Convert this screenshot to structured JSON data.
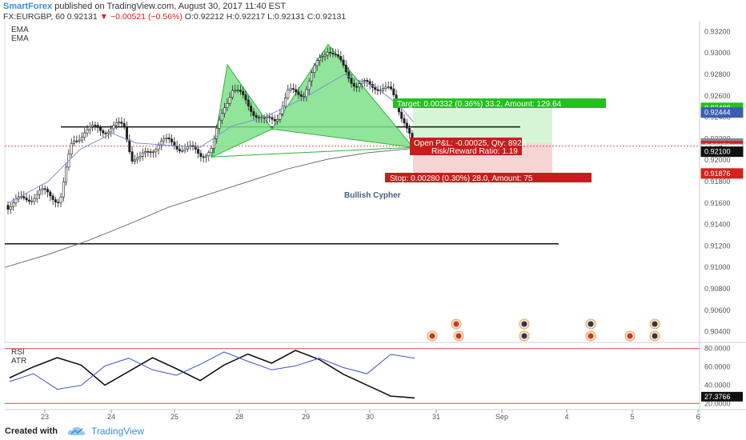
{
  "header": {
    "publisher": "SmartForex",
    "published_text": "published on TradingView.com, August 30, 2017 11:40 EST",
    "symbol": "FX:EURGBP, 60",
    "last": "0.92131",
    "change": "▼ −0.00521 (−0.56%)",
    "ohlc": "O:0.92212 H:0.92217 L:0.92131 C:0.92131"
  },
  "indicators": {
    "ema1": "EMA",
    "ema2": "EMA",
    "rsi": "RSI",
    "atr": "ATR"
  },
  "annotations": {
    "pattern": "Bullish Cypher",
    "target": "Target: 0.00332 (0.36%) 33.2, Amount: 129.64",
    "open_pnl": "Open P&L: -0.00025, Qty: 8928",
    "risk_reward": "Risk/Reward Ratio: 1.19",
    "stop": "Stop: 0.00280 (0.30%) 28.0, Amount: 75"
  },
  "price_axis": {
    "ticks": [
      "0.93200",
      "0.93000",
      "0.92800",
      "0.92600",
      "0.92400",
      "0.92200",
      "0.92000",
      "0.91800",
      "0.91600",
      "0.91400",
      "0.91200",
      "0.91000",
      "0.90800",
      "0.90600",
      "0.90400"
    ],
    "badges": [
      {
        "text": "0.92488",
        "color": "#22c11d",
        "value": 0.92488
      },
      {
        "text": "0.92444",
        "color": "#3a5fb0",
        "value": 0.92444
      },
      {
        "text": "0.92156",
        "color": "#7a8e98",
        "value": 0.92156
      },
      {
        "text": "0.92131",
        "color": "#d2231d",
        "value": 0.92131
      },
      {
        "text": "19:27",
        "color": "#ffffff",
        "value": 0.92105
      },
      {
        "text": "0.92100",
        "color": "#111111",
        "value": 0.92079
      },
      {
        "text": "0.91876",
        "color": "#d2231d",
        "value": 0.91876
      }
    ]
  },
  "rsi_axis": {
    "ticks": [
      "80.0000",
      "60.0000",
      "40.0000",
      "20.0000"
    ],
    "badge": {
      "text": "27.3766",
      "color": "#111111"
    }
  },
  "time_axis": {
    "labels": [
      "23",
      "24",
      "25",
      "28",
      "29",
      "30",
      "31",
      "Sep",
      "4",
      "5",
      "6"
    ]
  },
  "footer": {
    "created": "Created with",
    "brand": "TradingView"
  },
  "colors": {
    "pattern_fill": "#7ee08a",
    "pattern_stroke": "#31b43a",
    "target_zone": "#d6f5d6",
    "stop_zone": "#f7d4d4",
    "ema_fast": "#7f91d6",
    "ema_slow": "#6f6f6f",
    "rsi_line": "#111111",
    "atr_line": "#3f4fcf"
  },
  "chart_data": {
    "type": "line",
    "title": "FX:EURGBP, 60",
    "x": [
      "23",
      "24",
      "25",
      "28",
      "29",
      "30"
    ],
    "series": [
      {
        "name": "EMA",
        "values": [
          0.9159,
          0.9201,
          0.9214,
          0.9224,
          0.9243,
          0.9236
        ]
      },
      {
        "name": "EMA",
        "values": [
          0.9108,
          0.9136,
          0.916,
          0.9178,
          0.9198,
          0.9206
        ]
      }
    ],
    "ylim": [
      0.903,
      0.933
    ],
    "horizontal_levels": [
      0.9231,
      0.9122
    ],
    "pattern_points": [
      {
        "x": "25",
        "y": 0.9203
      },
      {
        "x": "28",
        "y": 0.9289
      },
      {
        "x": "28",
        "y": 0.9229
      },
      {
        "x": "29",
        "y": 0.9308
      },
      {
        "x": "30",
        "y": 0.9212
      }
    ],
    "position": {
      "entry": 0.92156,
      "target": 0.92488,
      "stop": 0.91876
    },
    "oscillator": {
      "name": "RSI",
      "values": [
        48,
        60,
        70,
        62,
        40,
        55,
        70,
        58,
        45,
        62,
        74,
        64,
        78,
        68,
        52,
        40,
        28,
        26
      ],
      "ylim": [
        15,
        85
      ],
      "levels": [
        80,
        20
      ],
      "last": 27.3766
    }
  }
}
